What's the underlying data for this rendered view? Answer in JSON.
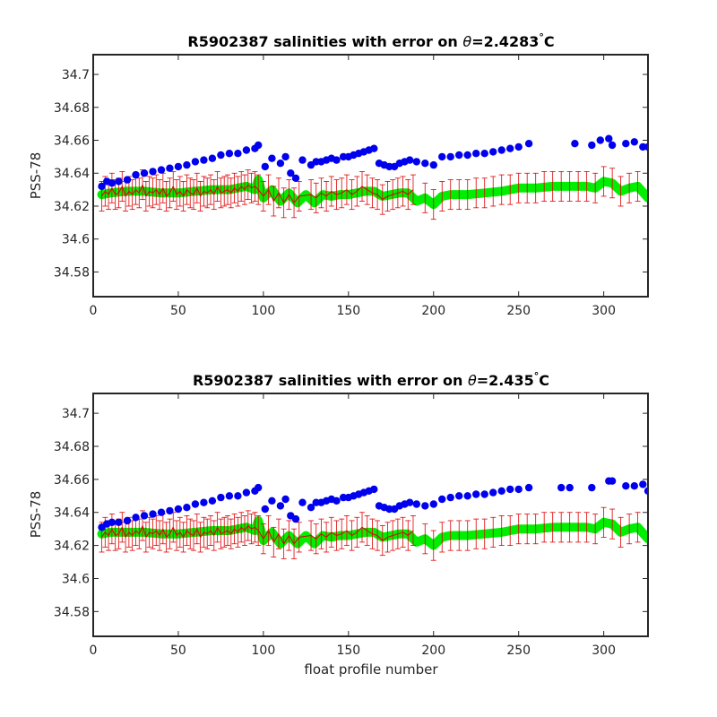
{
  "colors": {
    "dots": "#0000ee",
    "band": "#00ee00",
    "errorbars": "#dd0000",
    "axes": "#262626"
  },
  "chart_data": [
    {
      "type": "scatter",
      "title": "R5902387 salinities with error on θ=2.4283°C",
      "title_prefix": "R5902387 salinities with error on ",
      "title_theta": "θ",
      "title_value": "=2.4283",
      "title_degree": "°",
      "title_unit": "C",
      "xlabel": "",
      "ylabel": "PSS-78",
      "xlim": [
        0,
        326
      ],
      "ylim": [
        34.565,
        34.712
      ],
      "xticks": [
        0,
        50,
        100,
        150,
        200,
        250,
        300
      ],
      "yticks": [
        34.58,
        34.6,
        34.62,
        34.64,
        34.66,
        34.68,
        34.7
      ],
      "ytick_labels": [
        "34.58",
        "34.6",
        "34.62",
        "34.64",
        "34.66",
        "34.68",
        "34.7"
      ],
      "grid": false,
      "series": [
        {
          "kind": "scatter",
          "x": [
            5,
            8,
            11,
            15,
            20,
            25,
            30,
            35,
            40,
            45,
            50,
            55,
            60,
            65,
            70,
            75,
            80,
            85,
            90,
            95,
            97,
            101,
            105,
            110,
            113,
            116,
            119,
            123,
            128,
            131,
            134,
            137,
            140,
            143,
            147,
            150,
            153,
            156,
            159,
            162,
            165,
            168,
            171,
            174,
            177,
            180,
            183,
            186,
            190,
            195,
            200,
            205,
            210,
            215,
            220,
            225,
            230,
            235,
            240,
            245,
            250,
            256,
            283,
            293,
            298,
            303,
            305,
            313,
            318,
            323,
            326
          ],
          "y": [
            34.632,
            34.635,
            34.634,
            34.635,
            34.636,
            34.639,
            34.64,
            34.641,
            34.642,
            34.643,
            34.644,
            34.645,
            34.647,
            34.648,
            34.649,
            34.651,
            34.652,
            34.652,
            34.654,
            34.655,
            34.657,
            34.644,
            34.649,
            34.646,
            34.65,
            34.64,
            34.637,
            34.648,
            34.645,
            34.647,
            34.647,
            34.648,
            34.649,
            34.648,
            34.65,
            34.65,
            34.651,
            34.652,
            34.653,
            34.654,
            34.655,
            34.646,
            34.645,
            34.644,
            34.644,
            34.646,
            34.647,
            34.648,
            34.647,
            34.646,
            34.645,
            34.65,
            34.65,
            34.651,
            34.651,
            34.652,
            34.652,
            34.653,
            34.654,
            34.655,
            34.656,
            34.658,
            34.658,
            34.657,
            34.66,
            34.661,
            34.657,
            34.658,
            34.659,
            34.656,
            34.656
          ]
        },
        {
          "kind": "band",
          "x": [
            5,
            10,
            20,
            30,
            40,
            50,
            60,
            70,
            80,
            90,
            95,
            97,
            100,
            105,
            110,
            115,
            120,
            125,
            130,
            135,
            140,
            145,
            150,
            155,
            160,
            165,
            170,
            175,
            180,
            185,
            190,
            195,
            200,
            205,
            210,
            220,
            230,
            240,
            250,
            260,
            270,
            280,
            290,
            295,
            300,
            305,
            310,
            315,
            320,
            326
          ],
          "y": [
            34.627,
            34.628,
            34.629,
            34.629,
            34.628,
            34.628,
            34.629,
            34.63,
            34.63,
            34.632,
            34.63,
            34.636,
            34.625,
            34.63,
            34.623,
            34.628,
            34.622,
            34.627,
            34.622,
            34.627,
            34.626,
            34.627,
            34.627,
            34.628,
            34.629,
            34.629,
            34.626,
            34.627,
            34.628,
            34.628,
            34.623,
            34.625,
            34.621,
            34.626,
            34.627,
            34.627,
            34.628,
            34.629,
            34.631,
            34.631,
            34.632,
            34.632,
            34.632,
            34.631,
            34.635,
            34.634,
            34.629,
            34.631,
            34.632,
            34.625
          ]
        },
        {
          "kind": "errorbar",
          "x": [
            5,
            7,
            9,
            11,
            13,
            15,
            17,
            19,
            21,
            23,
            25,
            27,
            29,
            31,
            33,
            35,
            37,
            39,
            41,
            43,
            45,
            47,
            49,
            51,
            53,
            55,
            57,
            59,
            61,
            63,
            65,
            67,
            69,
            71,
            73,
            75,
            77,
            79,
            81,
            83,
            85,
            87,
            89,
            91,
            93,
            95,
            97,
            100,
            103,
            106,
            109,
            112,
            115,
            118,
            121,
            128,
            131,
            134,
            137,
            140,
            143,
            146,
            149,
            152,
            155,
            158,
            161,
            164,
            167,
            170,
            173,
            176,
            179,
            182,
            185,
            188,
            195,
            200,
            205,
            210,
            215,
            220,
            225,
            230,
            235,
            240,
            245,
            250,
            255,
            260,
            265,
            270,
            275,
            280,
            285,
            290,
            295,
            300,
            305,
            310,
            315,
            320
          ],
          "y": [
            34.626,
            34.629,
            34.627,
            34.631,
            34.627,
            34.628,
            34.632,
            34.626,
            34.629,
            34.627,
            34.63,
            34.628,
            34.633,
            34.626,
            34.629,
            34.628,
            34.63,
            34.627,
            34.631,
            34.626,
            34.628,
            34.632,
            34.627,
            34.629,
            34.626,
            34.63,
            34.628,
            34.627,
            34.631,
            34.626,
            34.629,
            34.628,
            34.63,
            34.627,
            34.632,
            34.628,
            34.629,
            34.63,
            34.628,
            34.631,
            34.629,
            34.632,
            34.63,
            34.633,
            34.631,
            34.632,
            34.63,
            34.626,
            34.63,
            34.623,
            34.628,
            34.622,
            34.627,
            34.622,
            34.626,
            34.627,
            34.625,
            34.628,
            34.626,
            34.629,
            34.627,
            34.628,
            34.63,
            34.627,
            34.629,
            34.632,
            34.63,
            34.628,
            34.627,
            34.624,
            34.626,
            34.627,
            34.628,
            34.629,
            34.627,
            34.63,
            34.625,
            34.621,
            34.626,
            34.627,
            34.627,
            34.627,
            34.628,
            34.628,
            34.629,
            34.63,
            34.63,
            34.631,
            34.631,
            34.631,
            34.632,
            34.632,
            34.632,
            34.632,
            34.632,
            34.632,
            34.631,
            34.635,
            34.634,
            34.629,
            34.631,
            34.632
          ],
          "err": 0.009
        }
      ]
    },
    {
      "type": "scatter",
      "title": "R5902387 salinities with error on θ=2.435°C",
      "title_prefix": "R5902387 salinities with error on ",
      "title_theta": "θ",
      "title_value": "=2.435",
      "title_degree": "°",
      "title_unit": "C",
      "xlabel": "float profile number",
      "ylabel": "PSS-78",
      "xlim": [
        0,
        326
      ],
      "ylim": [
        34.565,
        34.712
      ],
      "xticks": [
        0,
        50,
        100,
        150,
        200,
        250,
        300
      ],
      "yticks": [
        34.58,
        34.6,
        34.62,
        34.64,
        34.66,
        34.68,
        34.7
      ],
      "ytick_labels": [
        "34.58",
        "34.6",
        "34.62",
        "34.64",
        "34.66",
        "34.68",
        "34.7"
      ],
      "grid": false,
      "series": [
        {
          "kind": "scatter",
          "x": [
            5,
            8,
            11,
            15,
            20,
            25,
            30,
            35,
            40,
            45,
            50,
            55,
            60,
            65,
            70,
            75,
            80,
            85,
            90,
            95,
            97,
            101,
            105,
            110,
            113,
            116,
            119,
            123,
            128,
            131,
            134,
            137,
            140,
            143,
            147,
            150,
            153,
            156,
            159,
            162,
            165,
            168,
            171,
            174,
            177,
            180,
            183,
            186,
            190,
            195,
            200,
            205,
            210,
            215,
            220,
            225,
            230,
            235,
            240,
            245,
            250,
            256,
            275,
            280,
            293,
            303,
            305,
            313,
            318,
            323,
            326
          ],
          "y": [
            34.631,
            34.633,
            34.634,
            34.634,
            34.635,
            34.637,
            34.638,
            34.639,
            34.64,
            34.641,
            34.642,
            34.643,
            34.645,
            34.646,
            34.647,
            34.649,
            34.65,
            34.65,
            34.652,
            34.653,
            34.655,
            34.642,
            34.647,
            34.644,
            34.648,
            34.638,
            34.636,
            34.646,
            34.643,
            34.646,
            34.646,
            34.647,
            34.648,
            34.647,
            34.649,
            34.649,
            34.65,
            34.651,
            34.652,
            34.653,
            34.654,
            34.644,
            34.643,
            34.642,
            34.642,
            34.644,
            34.645,
            34.646,
            34.645,
            34.644,
            34.645,
            34.648,
            34.649,
            34.65,
            34.65,
            34.651,
            34.651,
            34.652,
            34.653,
            34.654,
            34.654,
            34.655,
            34.655,
            34.655,
            34.655,
            34.659,
            34.659,
            34.656,
            34.656,
            34.657,
            34.653
          ]
        },
        {
          "kind": "band",
          "x": [
            5,
            10,
            20,
            30,
            40,
            50,
            60,
            70,
            80,
            90,
            95,
            97,
            100,
            105,
            110,
            115,
            120,
            125,
            130,
            135,
            140,
            145,
            150,
            155,
            160,
            165,
            170,
            175,
            180,
            185,
            190,
            195,
            200,
            205,
            210,
            220,
            230,
            240,
            250,
            260,
            270,
            280,
            290,
            295,
            300,
            305,
            310,
            315,
            320,
            326
          ],
          "y": [
            34.627,
            34.628,
            34.628,
            34.628,
            34.627,
            34.627,
            34.628,
            34.629,
            34.629,
            34.631,
            34.629,
            34.635,
            34.623,
            34.628,
            34.621,
            34.626,
            34.621,
            34.626,
            34.621,
            34.626,
            34.625,
            34.626,
            34.626,
            34.627,
            34.628,
            34.628,
            34.625,
            34.626,
            34.627,
            34.627,
            34.622,
            34.624,
            34.62,
            34.625,
            34.626,
            34.626,
            34.627,
            34.628,
            34.63,
            34.63,
            34.631,
            34.631,
            34.631,
            34.63,
            34.634,
            34.633,
            34.628,
            34.63,
            34.631,
            34.624
          ]
        },
        {
          "kind": "errorbar",
          "x": [
            5,
            7,
            9,
            11,
            13,
            15,
            17,
            19,
            21,
            23,
            25,
            27,
            29,
            31,
            33,
            35,
            37,
            39,
            41,
            43,
            45,
            47,
            49,
            51,
            53,
            55,
            57,
            59,
            61,
            63,
            65,
            67,
            69,
            71,
            73,
            75,
            77,
            79,
            81,
            83,
            85,
            87,
            89,
            91,
            93,
            95,
            97,
            100,
            103,
            106,
            109,
            112,
            115,
            118,
            121,
            128,
            131,
            134,
            137,
            140,
            143,
            146,
            149,
            152,
            155,
            158,
            161,
            164,
            167,
            170,
            173,
            176,
            179,
            182,
            185,
            188,
            195,
            200,
            205,
            210,
            215,
            220,
            225,
            230,
            235,
            240,
            245,
            250,
            255,
            260,
            265,
            270,
            275,
            280,
            285,
            290,
            295,
            300,
            305,
            310,
            315,
            320
          ],
          "y": [
            34.625,
            34.628,
            34.626,
            34.63,
            34.626,
            34.627,
            34.631,
            34.625,
            34.628,
            34.626,
            34.629,
            34.627,
            34.632,
            34.625,
            34.628,
            34.627,
            34.629,
            34.626,
            34.63,
            34.625,
            34.627,
            34.631,
            34.626,
            34.628,
            34.625,
            34.629,
            34.627,
            34.626,
            34.63,
            34.625,
            34.628,
            34.627,
            34.629,
            34.626,
            34.631,
            34.627,
            34.628,
            34.629,
            34.627,
            34.63,
            34.628,
            34.631,
            34.629,
            34.632,
            34.63,
            34.631,
            34.629,
            34.624,
            34.629,
            34.622,
            34.627,
            34.621,
            34.626,
            34.621,
            34.625,
            34.626,
            34.624,
            34.627,
            34.625,
            34.628,
            34.626,
            34.627,
            34.629,
            34.626,
            34.628,
            34.631,
            34.629,
            34.627,
            34.626,
            34.623,
            34.625,
            34.626,
            34.627,
            34.628,
            34.626,
            34.629,
            34.624,
            34.62,
            34.625,
            34.626,
            34.626,
            34.626,
            34.627,
            34.627,
            34.628,
            34.629,
            34.629,
            34.63,
            34.63,
            34.63,
            34.631,
            34.631,
            34.631,
            34.631,
            34.631,
            34.631,
            34.63,
            34.634,
            34.633,
            34.628,
            34.63,
            34.631
          ],
          "err": 0.009
        }
      ]
    }
  ]
}
